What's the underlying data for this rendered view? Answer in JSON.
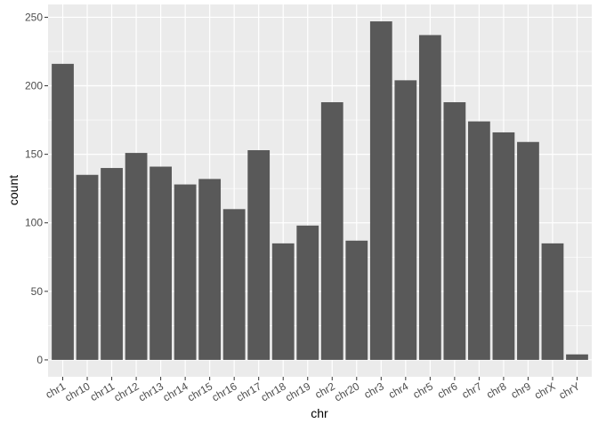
{
  "chart_data": {
    "type": "bar",
    "x_label": "chr",
    "y_label": "count",
    "categories": [
      "chr1",
      "chr10",
      "chr11",
      "chr12",
      "chr13",
      "chr14",
      "chr15",
      "chr16",
      "chr17",
      "chr18",
      "chr19",
      "chr2",
      "chr20",
      "chr3",
      "chr4",
      "chr5",
      "chr6",
      "chr7",
      "chr8",
      "chr9",
      "chrX",
      "chrY"
    ],
    "values": [
      216,
      135,
      140,
      151,
      141,
      128,
      132,
      110,
      153,
      85,
      98,
      188,
      87,
      247,
      204,
      237,
      188,
      174,
      166,
      159,
      85,
      4
    ],
    "color": "#595959",
    "ylim": [
      -12.35,
      259.35
    ],
    "yticks": [
      0,
      50,
      100,
      150,
      200,
      250
    ],
    "grid": true
  }
}
